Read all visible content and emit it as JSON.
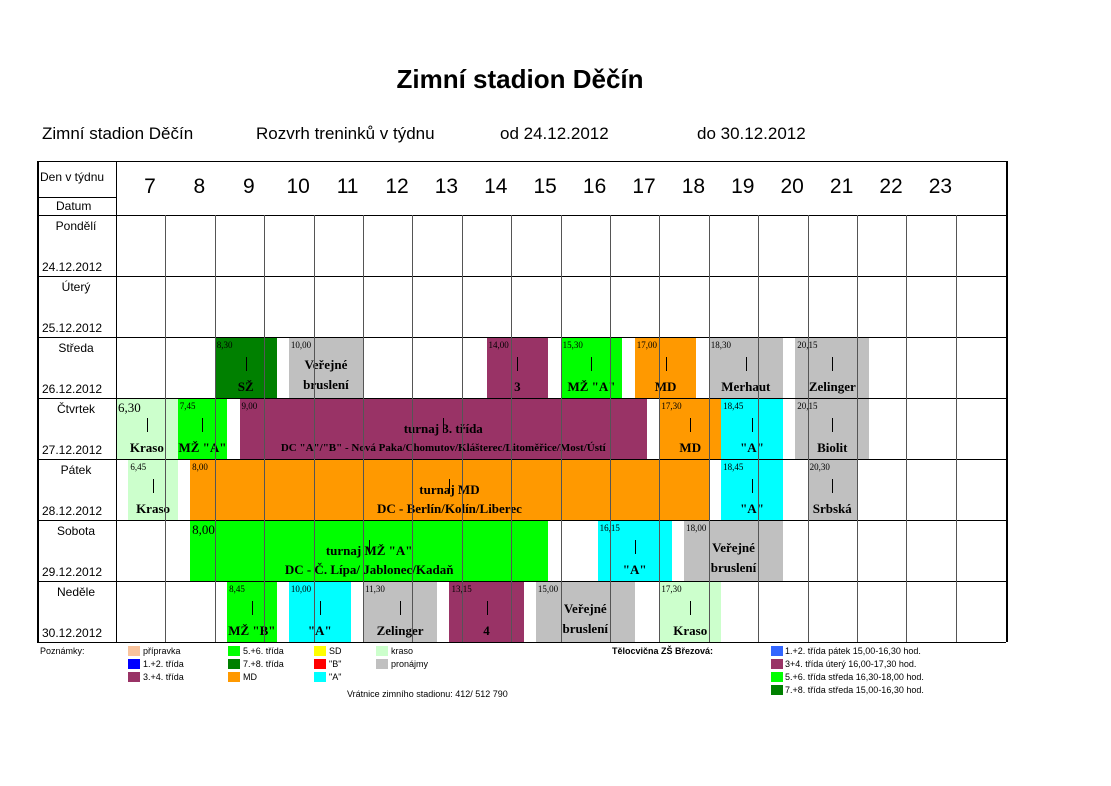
{
  "title": "Zimní stadion Děčín",
  "subheader": {
    "venue": "Zimní stadion Děčín",
    "schedule": "Rozvrh treninků v týdnu",
    "from": "od 24.12.2012",
    "to": "do 30.12.2012"
  },
  "header_labels": {
    "day": "Den v týdnu",
    "date": "Datum"
  },
  "hours": [
    "7",
    "8",
    "9",
    "10",
    "11",
    "12",
    "13",
    "14",
    "15",
    "16",
    "17",
    "18",
    "19",
    "20",
    "21",
    "22",
    "23"
  ],
  "days": [
    {
      "name": "Pondělí",
      "date": "24.12.2012"
    },
    {
      "name": "Úterý",
      "date": "25.12.2012"
    },
    {
      "name": "Středa",
      "date": "26.12.2012"
    },
    {
      "name": "Čtvrtek",
      "date": "27.12.2012"
    },
    {
      "name": "Pátek",
      "date": "28.12.2012"
    },
    {
      "name": "Sobota",
      "date": "29.12.2012"
    },
    {
      "name": "Neděle",
      "date": "30.12.2012"
    }
  ],
  "colors": {
    "pripravka": "#f9c39c",
    "t12": "#0000ff",
    "t34": "#993366",
    "t56": "#00ff00",
    "t78": "#008000",
    "md": "#ff9900",
    "sd": "#ffff00",
    "b": "#ff0000",
    "a": "#00ffff",
    "kraso": "#ccffcc",
    "pronajmy": "#c0c0c0",
    "t12_blue": "#3366ff"
  },
  "blocks": [
    {
      "day": 2,
      "start": 8.5,
      "end": 9.75,
      "color": "t78",
      "time": "8,30",
      "text": "SŽ"
    },
    {
      "day": 2,
      "start": 10.0,
      "end": 11.5,
      "color": "pronajmy",
      "time": "10,00",
      "text": "Veřejné bruslení",
      "two_line": true,
      "line1": "Veřejné",
      "line2": "bruslení"
    },
    {
      "day": 2,
      "start": 14.0,
      "end": 15.25,
      "color": "t34",
      "time": "14,00",
      "text": "3"
    },
    {
      "day": 2,
      "start": 15.5,
      "end": 16.75,
      "color": "t56",
      "time": "15,30",
      "text": "MŽ \"A\""
    },
    {
      "day": 2,
      "start": 17.0,
      "end": 18.25,
      "color": "md",
      "time": "17,00",
      "text": "MD"
    },
    {
      "day": 2,
      "start": 18.5,
      "end": 20.0,
      "color": "pronajmy",
      "time": "18,30",
      "text": "Merhaut"
    },
    {
      "day": 2,
      "start": 20.25,
      "end": 21.75,
      "color": "pronajmy",
      "time": "20,15",
      "text": "Zelinger"
    },
    {
      "day": 3,
      "start": 6.5,
      "end": 7.75,
      "color": "kraso",
      "time": "6,30",
      "text": "Kraso",
      "big_time": true
    },
    {
      "day": 3,
      "start": 7.75,
      "end": 8.75,
      "color": "t56",
      "time": "7,45",
      "text": "MŽ \"A\""
    },
    {
      "day": 3,
      "start": 9.0,
      "end": 17.25,
      "color": "t34",
      "time": "9,00",
      "text": "DC \"A\"/\"B\" - Nová Paka/Chomutov/Klášterec/Litoměřice/Most/Ústí",
      "top_text": "turnaj 3. třída"
    },
    {
      "day": 3,
      "start": 17.5,
      "end": 18.75,
      "color": "md",
      "time": "17,30",
      "text": "MD"
    },
    {
      "day": 3,
      "start": 18.75,
      "end": 20.0,
      "color": "a",
      "time": "18,45",
      "text": "\"A\""
    },
    {
      "day": 3,
      "start": 20.25,
      "end": 21.75,
      "color": "pronajmy",
      "time": "20,15",
      "text": "Biolit"
    },
    {
      "day": 4,
      "start": 6.75,
      "end": 7.75,
      "color": "kraso",
      "time": "6,45",
      "text": "Kraso"
    },
    {
      "day": 4,
      "start": 8.0,
      "end": 18.5,
      "color": "md",
      "time": "8,00",
      "text": "DC - Berlín/Kolín/Liberec",
      "top_text": "turnaj MD"
    },
    {
      "day": 4,
      "start": 18.75,
      "end": 20.0,
      "color": "a",
      "time": "18,45",
      "text": "\"A\""
    },
    {
      "day": 4,
      "start": 20.5,
      "end": 21.5,
      "color": "pronajmy",
      "time": "20,30",
      "text": "Srbská"
    },
    {
      "day": 5,
      "start": 8.0,
      "end": 15.25,
      "color": "t56",
      "time": "8,00",
      "text": "DC - Č. Lípa/ Jablonec/Kadaň",
      "top_text": "turnaj MŽ \"A\"",
      "big_time": true
    },
    {
      "day": 5,
      "start": 16.25,
      "end": 17.75,
      "color": "a",
      "time": "16,15",
      "text": "\"A\""
    },
    {
      "day": 5,
      "start": 18.0,
      "end": 20.0,
      "color": "pronajmy",
      "time": "18,00",
      "text": "Veřejné bruslení",
      "two_line": true,
      "line1": "Veřejné",
      "line2": "bruslení"
    },
    {
      "day": 6,
      "start": 8.75,
      "end": 9.75,
      "color": "t56",
      "time": "8,45",
      "text": "MŽ \"B\""
    },
    {
      "day": 6,
      "start": 10.0,
      "end": 11.25,
      "color": "a",
      "time": "10,00",
      "text": "\"A\""
    },
    {
      "day": 6,
      "start": 11.5,
      "end": 13.0,
      "color": "pronajmy",
      "time": "11,30",
      "text": "Zelinger"
    },
    {
      "day": 6,
      "start": 13.25,
      "end": 14.75,
      "color": "t34",
      "time": "13,15",
      "text": "4"
    },
    {
      "day": 6,
      "start": 15.0,
      "end": 17.0,
      "color": "pronajmy",
      "time": "15,00",
      "text": "Veřejné bruslení",
      "two_line": true,
      "line1": "Veřejné",
      "line2": "bruslení"
    },
    {
      "day": 6,
      "start": 17.5,
      "end": 18.75,
      "color": "kraso",
      "time": "17,30",
      "text": "Kraso"
    }
  ],
  "notes_label": "Poznámky:",
  "legend": [
    {
      "color": "pripravka",
      "label": "přípravka"
    },
    {
      "color": "t12",
      "label": "1.+2. třída"
    },
    {
      "color": "t34",
      "label": "3.+4. třída"
    },
    {
      "color": "t56",
      "label": "5.+6. třída"
    },
    {
      "color": "t78",
      "label": "7.+8. třída"
    },
    {
      "color": "md",
      "label": "MD"
    },
    {
      "color": "sd",
      "label": "SD"
    },
    {
      "color": "b",
      "label": "\"B\""
    },
    {
      "color": "a",
      "label": "\"A\""
    },
    {
      "color": "kraso",
      "label": "kraso"
    },
    {
      "color": "pronajmy",
      "label": "pronájmy"
    }
  ],
  "gym": {
    "title": "Tělocvična ZŠ Březová:",
    "items": [
      {
        "color": "t12_blue",
        "label": "1.+2. třída pátek 15,00-16,30 hod."
      },
      {
        "color": "t34",
        "label": "3+4. třída úterý 16,00-17,30 hod."
      },
      {
        "color": "t56",
        "label": "5.+6.  třída středa 16,30-18,00 hod."
      },
      {
        "color": "t78",
        "label": "7.+8. třída středa 15,00-16,30 hod."
      }
    ]
  },
  "vratnice": "Vrátnice zimního stadionu: 412/ 512 790"
}
